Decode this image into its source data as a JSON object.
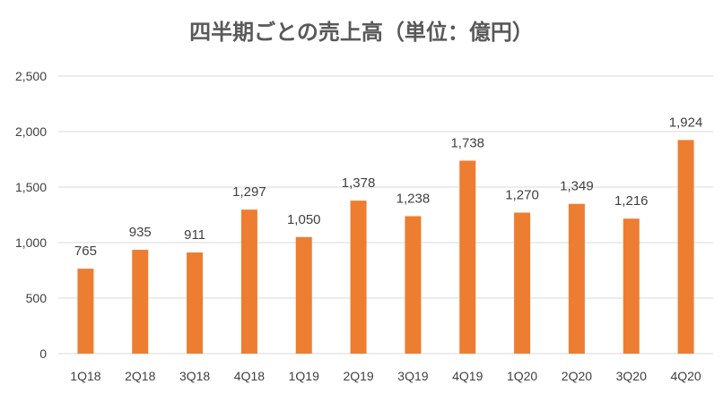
{
  "chart_data": {
    "type": "bar",
    "title": "四半期ごとの売上高（単位：億円）",
    "categories": [
      "1Q18",
      "2Q18",
      "3Q18",
      "4Q18",
      "1Q19",
      "2Q19",
      "3Q19",
      "4Q19",
      "1Q20",
      "2Q20",
      "3Q20",
      "4Q20"
    ],
    "values": [
      765,
      935,
      911,
      1297,
      1050,
      1378,
      1238,
      1738,
      1270,
      1349,
      1216,
      1924
    ],
    "value_labels": [
      "765",
      "935",
      "911",
      "1,297",
      "1,050",
      "1,378",
      "1,238",
      "1,738",
      "1,270",
      "1,349",
      "1,216",
      "1,924"
    ],
    "y_ticks": [
      0,
      500,
      1000,
      1500,
      2000,
      2500
    ],
    "y_tick_labels": [
      "0",
      "500",
      "1,000",
      "1,500",
      "2,000",
      "2,500"
    ],
    "ylim": [
      0,
      2500
    ],
    "xlabel": "",
    "ylabel": "",
    "grid": true,
    "legend": "none",
    "bar_color": "#ED7D31"
  }
}
